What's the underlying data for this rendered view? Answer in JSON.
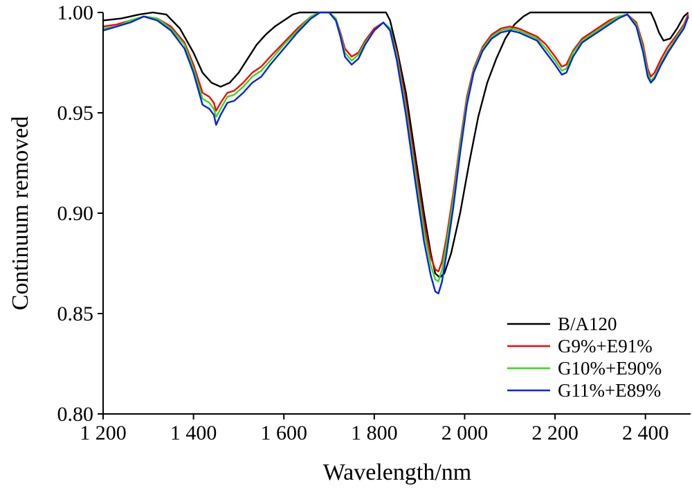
{
  "chart_data": {
    "type": "line",
    "xlabel": "Wavelength/nm",
    "ylabel": "Continuum removed",
    "xlim": [
      1200,
      2500
    ],
    "ylim": [
      0.8,
      1.0
    ],
    "x_ticks": [
      1200,
      1400,
      1600,
      1800,
      2000,
      2200,
      2400
    ],
    "x_tick_labels": [
      "1 200",
      "1 400",
      "1 600",
      "1 800",
      "2 000",
      "2 200",
      "2 400"
    ],
    "y_ticks": [
      0.8,
      0.85,
      0.9,
      0.95,
      1.0
    ],
    "y_tick_labels": [
      "0.80",
      "0.85",
      "0.90",
      "0.95",
      "1.00"
    ],
    "grid": false,
    "legend_position": "bottom-right",
    "series": [
      {
        "name": "B/A120",
        "color": "#000000",
        "points": [
          [
            1200,
            0.996
          ],
          [
            1240,
            0.997
          ],
          [
            1280,
            0.999
          ],
          [
            1310,
            1.0
          ],
          [
            1340,
            0.999
          ],
          [
            1370,
            0.992
          ],
          [
            1400,
            0.98
          ],
          [
            1420,
            0.97
          ],
          [
            1440,
            0.965
          ],
          [
            1460,
            0.963
          ],
          [
            1480,
            0.965
          ],
          [
            1500,
            0.97
          ],
          [
            1520,
            0.977
          ],
          [
            1540,
            0.984
          ],
          [
            1560,
            0.989
          ],
          [
            1580,
            0.993
          ],
          [
            1600,
            0.996
          ],
          [
            1620,
            0.999
          ],
          [
            1635,
            1.0
          ],
          [
            1826,
            1.0
          ],
          [
            1835,
            0.996
          ],
          [
            1850,
            0.982
          ],
          [
            1870,
            0.96
          ],
          [
            1890,
            0.93
          ],
          [
            1910,
            0.9
          ],
          [
            1925,
            0.88
          ],
          [
            1935,
            0.87
          ],
          [
            1945,
            0.868
          ],
          [
            1955,
            0.87
          ],
          [
            1970,
            0.88
          ],
          [
            1990,
            0.9
          ],
          [
            2010,
            0.925
          ],
          [
            2030,
            0.948
          ],
          [
            2050,
            0.965
          ],
          [
            2070,
            0.977
          ],
          [
            2090,
            0.987
          ],
          [
            2110,
            0.994
          ],
          [
            2130,
            0.998
          ],
          [
            2145,
            1.0
          ],
          [
            2412,
            1.0
          ],
          [
            2420,
            0.996
          ],
          [
            2430,
            0.99
          ],
          [
            2440,
            0.986
          ],
          [
            2455,
            0.987
          ],
          [
            2470,
            0.992
          ],
          [
            2485,
            0.998
          ],
          [
            2495,
            1.0
          ]
        ]
      },
      {
        "name": "G9%+E91%",
        "color": "#ff0000",
        "points": [
          [
            1200,
            0.993
          ],
          [
            1230,
            0.994
          ],
          [
            1260,
            0.996
          ],
          [
            1290,
            0.998
          ],
          [
            1320,
            0.997
          ],
          [
            1350,
            0.993
          ],
          [
            1380,
            0.985
          ],
          [
            1400,
            0.974
          ],
          [
            1420,
            0.96
          ],
          [
            1435,
            0.958
          ],
          [
            1445,
            0.955
          ],
          [
            1450,
            0.951
          ],
          [
            1460,
            0.955
          ],
          [
            1475,
            0.96
          ],
          [
            1490,
            0.961
          ],
          [
            1510,
            0.965
          ],
          [
            1530,
            0.97
          ],
          [
            1550,
            0.973
          ],
          [
            1570,
            0.978
          ],
          [
            1600,
            0.985
          ],
          [
            1630,
            0.992
          ],
          [
            1660,
            0.998
          ],
          [
            1680,
            1.0
          ],
          [
            1700,
            1.0
          ],
          [
            1715,
            0.997
          ],
          [
            1725,
            0.99
          ],
          [
            1735,
            0.982
          ],
          [
            1750,
            0.978
          ],
          [
            1765,
            0.98
          ],
          [
            1780,
            0.986
          ],
          [
            1800,
            0.992
          ],
          [
            1820,
            0.995
          ],
          [
            1835,
            0.992
          ],
          [
            1850,
            0.98
          ],
          [
            1870,
            0.955
          ],
          [
            1890,
            0.925
          ],
          [
            1910,
            0.895
          ],
          [
            1925,
            0.878
          ],
          [
            1935,
            0.872
          ],
          [
            1942,
            0.871
          ],
          [
            1950,
            0.876
          ],
          [
            1960,
            0.888
          ],
          [
            1975,
            0.91
          ],
          [
            1990,
            0.935
          ],
          [
            2005,
            0.958
          ],
          [
            2020,
            0.972
          ],
          [
            2040,
            0.983
          ],
          [
            2060,
            0.989
          ],
          [
            2080,
            0.992
          ],
          [
            2100,
            0.993
          ],
          [
            2120,
            0.992
          ],
          [
            2140,
            0.99
          ],
          [
            2160,
            0.988
          ],
          [
            2180,
            0.984
          ],
          [
            2200,
            0.978
          ],
          [
            2215,
            0.973
          ],
          [
            2225,
            0.974
          ],
          [
            2240,
            0.981
          ],
          [
            2260,
            0.987
          ],
          [
            2280,
            0.99
          ],
          [
            2300,
            0.993
          ],
          [
            2320,
            0.996
          ],
          [
            2340,
            0.998
          ],
          [
            2360,
            0.999
          ],
          [
            2380,
            0.995
          ],
          [
            2395,
            0.984
          ],
          [
            2405,
            0.972
          ],
          [
            2412,
            0.968
          ],
          [
            2420,
            0.97
          ],
          [
            2435,
            0.977
          ],
          [
            2450,
            0.983
          ],
          [
            2470,
            0.989
          ],
          [
            2485,
            0.994
          ],
          [
            2495,
            0.999
          ]
        ]
      },
      {
        "name": "G10%+E90%",
        "color": "#33dd11",
        "points": [
          [
            1200,
            0.992
          ],
          [
            1230,
            0.993
          ],
          [
            1260,
            0.996
          ],
          [
            1290,
            0.998
          ],
          [
            1320,
            0.997
          ],
          [
            1350,
            0.992
          ],
          [
            1380,
            0.984
          ],
          [
            1400,
            0.972
          ],
          [
            1420,
            0.957
          ],
          [
            1435,
            0.955
          ],
          [
            1445,
            0.952
          ],
          [
            1450,
            0.948
          ],
          [
            1460,
            0.952
          ],
          [
            1475,
            0.958
          ],
          [
            1490,
            0.959
          ],
          [
            1510,
            0.963
          ],
          [
            1530,
            0.968
          ],
          [
            1550,
            0.971
          ],
          [
            1570,
            0.976
          ],
          [
            1600,
            0.984
          ],
          [
            1630,
            0.991
          ],
          [
            1660,
            0.998
          ],
          [
            1680,
            1.0
          ],
          [
            1700,
            1.0
          ],
          [
            1715,
            0.997
          ],
          [
            1725,
            0.989
          ],
          [
            1735,
            0.98
          ],
          [
            1750,
            0.976
          ],
          [
            1765,
            0.979
          ],
          [
            1780,
            0.985
          ],
          [
            1800,
            0.991
          ],
          [
            1820,
            0.995
          ],
          [
            1835,
            0.992
          ],
          [
            1850,
            0.978
          ],
          [
            1870,
            0.952
          ],
          [
            1890,
            0.921
          ],
          [
            1910,
            0.891
          ],
          [
            1925,
            0.874
          ],
          [
            1935,
            0.867
          ],
          [
            1942,
            0.866
          ],
          [
            1950,
            0.872
          ],
          [
            1960,
            0.885
          ],
          [
            1975,
            0.907
          ],
          [
            1990,
            0.933
          ],
          [
            2005,
            0.956
          ],
          [
            2020,
            0.971
          ],
          [
            2040,
            0.982
          ],
          [
            2060,
            0.988
          ],
          [
            2080,
            0.991
          ],
          [
            2100,
            0.992
          ],
          [
            2120,
            0.991
          ],
          [
            2140,
            0.989
          ],
          [
            2160,
            0.987
          ],
          [
            2180,
            0.982
          ],
          [
            2200,
            0.976
          ],
          [
            2215,
            0.971
          ],
          [
            2225,
            0.972
          ],
          [
            2240,
            0.98
          ],
          [
            2260,
            0.986
          ],
          [
            2280,
            0.989
          ],
          [
            2300,
            0.992
          ],
          [
            2320,
            0.995
          ],
          [
            2340,
            0.998
          ],
          [
            2360,
            0.999
          ],
          [
            2380,
            0.994
          ],
          [
            2395,
            0.982
          ],
          [
            2405,
            0.97
          ],
          [
            2412,
            0.966
          ],
          [
            2420,
            0.968
          ],
          [
            2435,
            0.975
          ],
          [
            2450,
            0.981
          ],
          [
            2470,
            0.988
          ],
          [
            2485,
            0.993
          ],
          [
            2495,
            0.998
          ]
        ]
      },
      {
        "name": "G11%+E89%",
        "color": "#0022ee",
        "points": [
          [
            1200,
            0.991
          ],
          [
            1230,
            0.993
          ],
          [
            1260,
            0.995
          ],
          [
            1290,
            0.998
          ],
          [
            1320,
            0.996
          ],
          [
            1350,
            0.991
          ],
          [
            1380,
            0.982
          ],
          [
            1400,
            0.97
          ],
          [
            1420,
            0.954
          ],
          [
            1435,
            0.952
          ],
          [
            1445,
            0.949
          ],
          [
            1450,
            0.944
          ],
          [
            1460,
            0.949
          ],
          [
            1475,
            0.955
          ],
          [
            1490,
            0.956
          ],
          [
            1510,
            0.96
          ],
          [
            1530,
            0.965
          ],
          [
            1550,
            0.968
          ],
          [
            1570,
            0.974
          ],
          [
            1600,
            0.982
          ],
          [
            1630,
            0.99
          ],
          [
            1660,
            0.997
          ],
          [
            1680,
            1.0
          ],
          [
            1700,
            1.0
          ],
          [
            1715,
            0.996
          ],
          [
            1725,
            0.988
          ],
          [
            1735,
            0.978
          ],
          [
            1750,
            0.974
          ],
          [
            1765,
            0.977
          ],
          [
            1780,
            0.984
          ],
          [
            1800,
            0.991
          ],
          [
            1820,
            0.995
          ],
          [
            1835,
            0.991
          ],
          [
            1850,
            0.976
          ],
          [
            1870,
            0.949
          ],
          [
            1890,
            0.917
          ],
          [
            1910,
            0.886
          ],
          [
            1925,
            0.869
          ],
          [
            1935,
            0.861
          ],
          [
            1942,
            0.86
          ],
          [
            1950,
            0.866
          ],
          [
            1960,
            0.88
          ],
          [
            1975,
            0.903
          ],
          [
            1990,
            0.93
          ],
          [
            2005,
            0.954
          ],
          [
            2020,
            0.97
          ],
          [
            2040,
            0.981
          ],
          [
            2060,
            0.987
          ],
          [
            2080,
            0.99
          ],
          [
            2100,
            0.991
          ],
          [
            2120,
            0.99
          ],
          [
            2140,
            0.988
          ],
          [
            2160,
            0.986
          ],
          [
            2180,
            0.98
          ],
          [
            2200,
            0.974
          ],
          [
            2215,
            0.969
          ],
          [
            2225,
            0.97
          ],
          [
            2240,
            0.978
          ],
          [
            2260,
            0.985
          ],
          [
            2280,
            0.988
          ],
          [
            2300,
            0.991
          ],
          [
            2320,
            0.994
          ],
          [
            2340,
            0.997
          ],
          [
            2360,
            0.999
          ],
          [
            2380,
            0.993
          ],
          [
            2395,
            0.98
          ],
          [
            2405,
            0.968
          ],
          [
            2412,
            0.965
          ],
          [
            2420,
            0.967
          ],
          [
            2435,
            0.974
          ],
          [
            2450,
            0.98
          ],
          [
            2470,
            0.987
          ],
          [
            2485,
            0.992
          ],
          [
            2495,
            0.998
          ]
        ]
      }
    ]
  }
}
